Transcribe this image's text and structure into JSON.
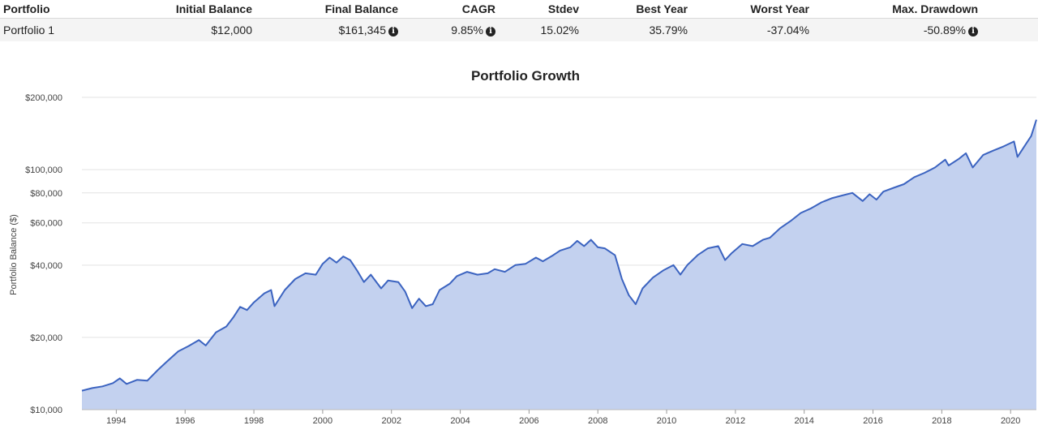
{
  "table": {
    "headers": [
      "Portfolio",
      "Initial Balance",
      "Final Balance",
      "CAGR",
      "Stdev",
      "Best Year",
      "Worst Year",
      "Max. Drawdown"
    ],
    "row": {
      "name": "Portfolio 1",
      "initial_balance": "$12,000",
      "final_balance": "$161,345",
      "cagr": "9.85%",
      "stdev": "15.02%",
      "best_year": "35.79%",
      "worst_year": "-37.04%",
      "max_drawdown": "-50.89%"
    },
    "info_glyph": "i"
  },
  "chart_data": {
    "type": "area",
    "title": "Portfolio Growth",
    "ylabel": "Portfolio Balance ($)",
    "xlabel": "",
    "yscale": "log",
    "ylim": [
      10000,
      200000
    ],
    "xlim": [
      1993.0,
      2020.75
    ],
    "yticks": [
      10000,
      20000,
      40000,
      60000,
      80000,
      100000,
      200000
    ],
    "ytick_labels": [
      "$10,000",
      "$20,000",
      "$40,000",
      "$60,000",
      "$80,000",
      "$100,000",
      "$200,000"
    ],
    "xticks": [
      1994,
      1996,
      1998,
      2000,
      2002,
      2004,
      2006,
      2008,
      2010,
      2012,
      2014,
      2016,
      2018,
      2020
    ],
    "colors": {
      "line": "#3b63c0",
      "fill": "#c3d1ef",
      "grid": "#e3e3e3"
    },
    "series": [
      {
        "name": "Portfolio 1",
        "points": [
          [
            1993.0,
            12000
          ],
          [
            1993.3,
            12300
          ],
          [
            1993.6,
            12500
          ],
          [
            1993.9,
            12900
          ],
          [
            1994.1,
            13500
          ],
          [
            1994.3,
            12800
          ],
          [
            1994.6,
            13300
          ],
          [
            1994.9,
            13200
          ],
          [
            1995.2,
            14600
          ],
          [
            1995.5,
            16000
          ],
          [
            1995.8,
            17500
          ],
          [
            1996.1,
            18400
          ],
          [
            1996.4,
            19500
          ],
          [
            1996.6,
            18500
          ],
          [
            1996.9,
            21000
          ],
          [
            1997.2,
            22200
          ],
          [
            1997.4,
            24200
          ],
          [
            1997.6,
            26800
          ],
          [
            1997.8,
            26000
          ],
          [
            1998.0,
            28000
          ],
          [
            1998.3,
            30500
          ],
          [
            1998.5,
            31500
          ],
          [
            1998.6,
            27000
          ],
          [
            1998.9,
            31500
          ],
          [
            1999.2,
            35000
          ],
          [
            1999.5,
            37000
          ],
          [
            1999.8,
            36500
          ],
          [
            2000.0,
            40500
          ],
          [
            2000.2,
            43000
          ],
          [
            2000.4,
            41000
          ],
          [
            2000.6,
            43500
          ],
          [
            2000.8,
            42000
          ],
          [
            2001.0,
            38000
          ],
          [
            2001.2,
            34000
          ],
          [
            2001.4,
            36500
          ],
          [
            2001.7,
            32000
          ],
          [
            2001.9,
            34500
          ],
          [
            2002.2,
            34000
          ],
          [
            2002.4,
            31000
          ],
          [
            2002.6,
            26500
          ],
          [
            2002.8,
            29000
          ],
          [
            2003.0,
            27000
          ],
          [
            2003.2,
            27500
          ],
          [
            2003.4,
            31500
          ],
          [
            2003.7,
            33500
          ],
          [
            2003.9,
            36000
          ],
          [
            2004.2,
            37500
          ],
          [
            2004.5,
            36500
          ],
          [
            2004.8,
            37000
          ],
          [
            2005.0,
            38500
          ],
          [
            2005.3,
            37500
          ],
          [
            2005.6,
            40000
          ],
          [
            2005.9,
            40500
          ],
          [
            2006.2,
            43000
          ],
          [
            2006.4,
            41500
          ],
          [
            2006.7,
            44000
          ],
          [
            2006.9,
            46000
          ],
          [
            2007.2,
            47500
          ],
          [
            2007.4,
            50500
          ],
          [
            2007.6,
            48000
          ],
          [
            2007.8,
            51000
          ],
          [
            2008.0,
            47500
          ],
          [
            2008.2,
            47000
          ],
          [
            2008.5,
            44000
          ],
          [
            2008.7,
            35000
          ],
          [
            2008.9,
            30000
          ],
          [
            2009.1,
            27500
          ],
          [
            2009.3,
            32000
          ],
          [
            2009.6,
            35500
          ],
          [
            2009.9,
            38000
          ],
          [
            2010.2,
            40000
          ],
          [
            2010.4,
            36500
          ],
          [
            2010.6,
            40000
          ],
          [
            2010.9,
            44000
          ],
          [
            2011.2,
            47000
          ],
          [
            2011.5,
            48000
          ],
          [
            2011.7,
            42000
          ],
          [
            2011.9,
            45000
          ],
          [
            2012.2,
            49000
          ],
          [
            2012.5,
            48000
          ],
          [
            2012.8,
            51000
          ],
          [
            2013.0,
            52000
          ],
          [
            2013.3,
            57000
          ],
          [
            2013.6,
            61000
          ],
          [
            2013.9,
            66000
          ],
          [
            2014.2,
            69000
          ],
          [
            2014.5,
            73000
          ],
          [
            2014.8,
            76000
          ],
          [
            2015.1,
            78000
          ],
          [
            2015.4,
            80000
          ],
          [
            2015.7,
            74000
          ],
          [
            2015.9,
            79000
          ],
          [
            2016.1,
            75000
          ],
          [
            2016.3,
            81000
          ],
          [
            2016.6,
            84000
          ],
          [
            2016.9,
            87000
          ],
          [
            2017.2,
            93000
          ],
          [
            2017.5,
            97000
          ],
          [
            2017.8,
            102000
          ],
          [
            2018.1,
            110000
          ],
          [
            2018.2,
            104000
          ],
          [
            2018.5,
            111000
          ],
          [
            2018.7,
            117000
          ],
          [
            2018.9,
            102000
          ],
          [
            2019.2,
            115000
          ],
          [
            2019.5,
            120000
          ],
          [
            2019.8,
            125000
          ],
          [
            2020.1,
            131000
          ],
          [
            2020.2,
            113000
          ],
          [
            2020.4,
            125000
          ],
          [
            2020.6,
            138000
          ],
          [
            2020.75,
            161345
          ]
        ]
      }
    ]
  }
}
